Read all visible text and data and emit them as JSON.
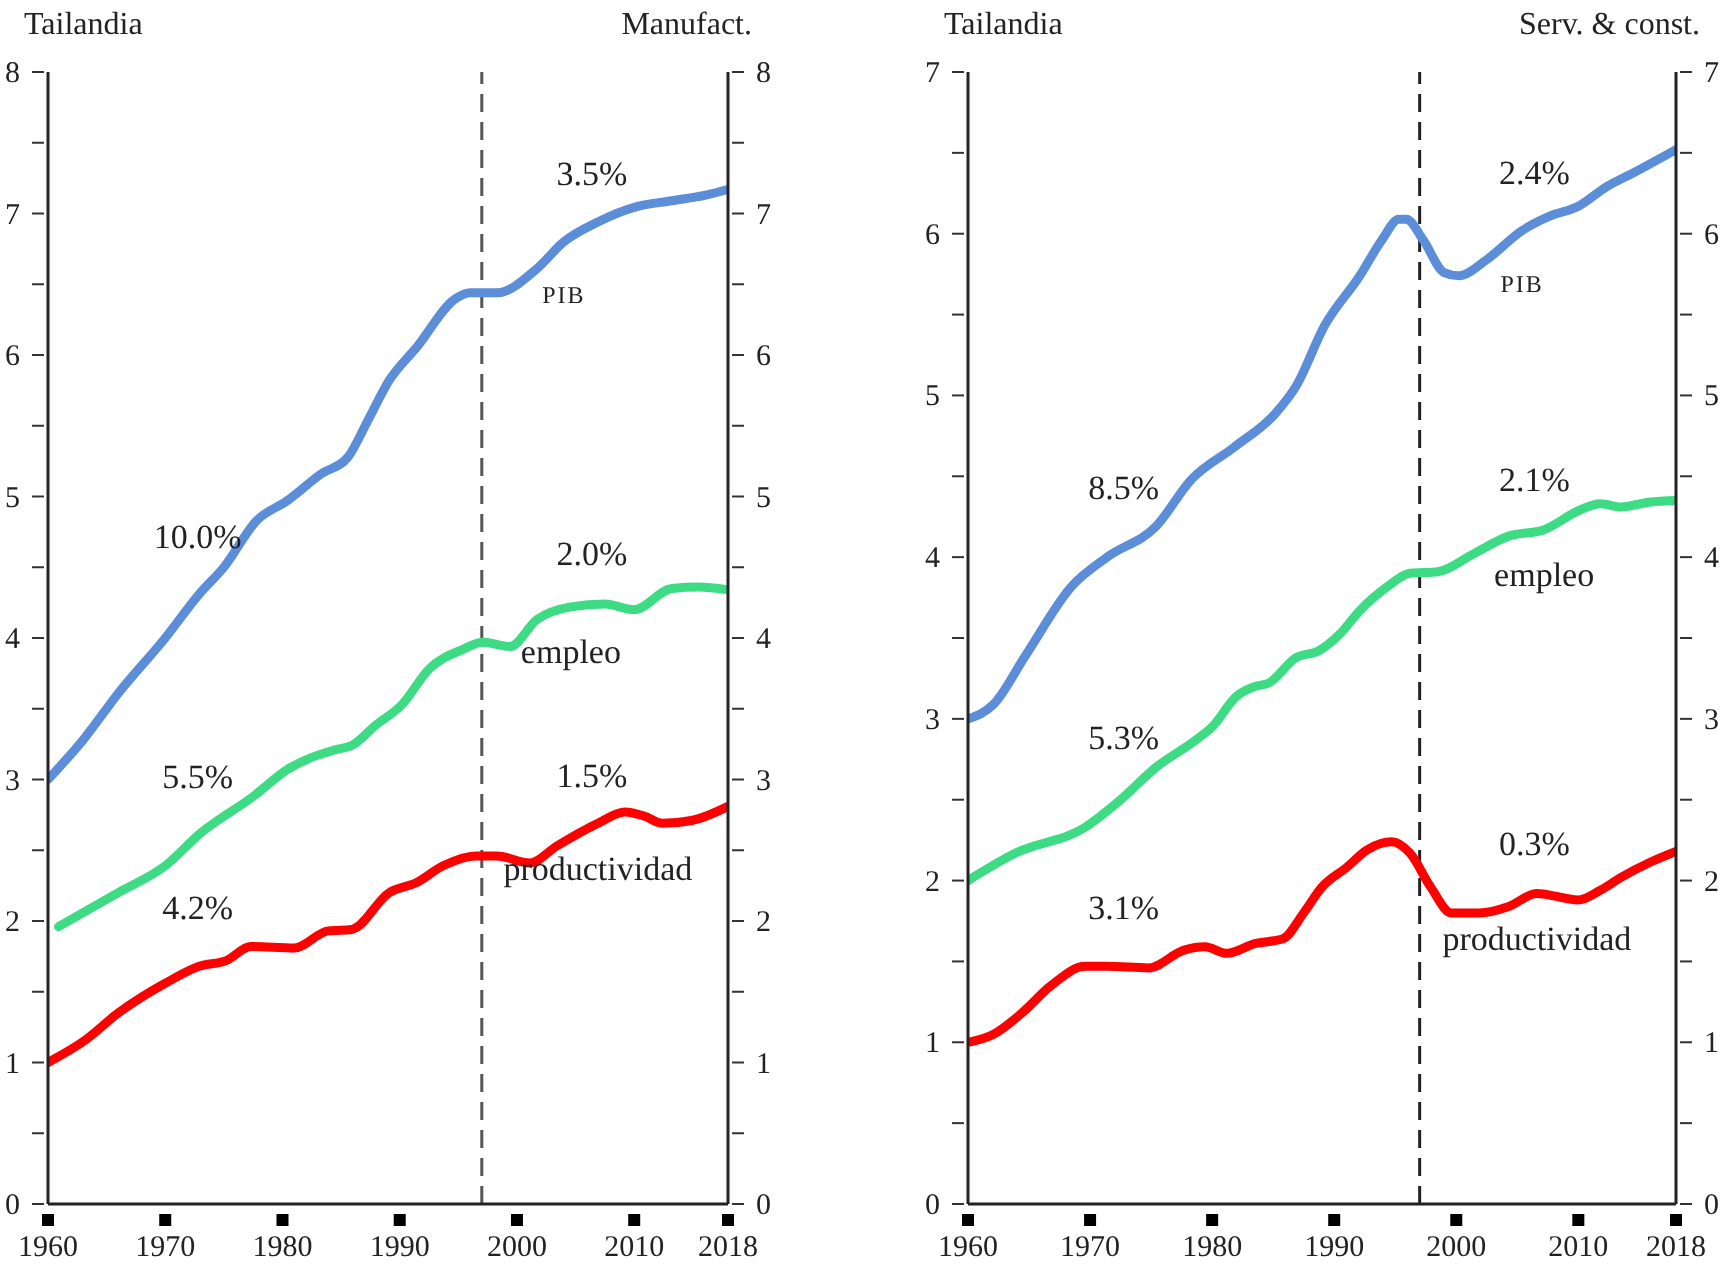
{
  "chart_data": [
    {
      "type": "line",
      "title": "Tailandia",
      "subtitle": "Manufact.",
      "marker": "none",
      "line_style": "solid",
      "xlim": [
        1960,
        2018
      ],
      "xticks": [
        1960,
        1970,
        1980,
        1990,
        2000,
        2010,
        2018
      ],
      "ylim": [
        0,
        8
      ],
      "yticks": [
        0,
        {
          "value": 0.5,
          "label": null
        },
        1,
        {
          "value": 1.5,
          "label": null
        },
        2,
        {
          "value": 2.5,
          "label": null
        },
        3,
        {
          "value": 3.5,
          "label": null
        },
        4,
        {
          "value": 4.5,
          "label": null
        },
        5,
        {
          "value": 5.5,
          "label": null
        },
        6,
        {
          "value": 6.5,
          "label": null
        },
        7,
        {
          "value": 7.5,
          "label": null
        },
        8
      ],
      "y2lim": [
        0,
        8
      ],
      "y2ticks": [
        0,
        {
          "value": 0.5,
          "label": null
        },
        1,
        {
          "value": 1.5,
          "label": null
        },
        2,
        {
          "value": 2.5,
          "label": null
        },
        3,
        {
          "value": 3.5,
          "label": null
        },
        4,
        {
          "value": 4.5,
          "label": null
        },
        5,
        {
          "value": 5.5,
          "label": null
        },
        6,
        {
          "value": 6.5,
          "label": null
        },
        7,
        {
          "value": 7.5,
          "label": null
        },
        8
      ],
      "ref_lines": [
        {
          "axis": "x",
          "value": 1997,
          "color": "#555555",
          "line_style": "dashed"
        }
      ],
      "series": [
        {
          "name": "PIB",
          "color": "#5b8dd9",
          "x": [
            1960,
            1963,
            1966,
            1970,
            1972.9,
            1975,
            1977.8,
            1980.4,
            1983.3,
            1985.6,
            1987.3,
            1989.1,
            1991.4,
            1994.8,
            1996,
            1998.3,
            2001.7,
            2004,
            2006.9,
            2010.3,
            2013.2,
            2016.1,
            2018
          ],
          "values": [
            3.0,
            3.28,
            3.61,
            4.0,
            4.31,
            4.5,
            4.83,
            4.97,
            5.16,
            5.28,
            5.54,
            5.82,
            6.05,
            6.4,
            6.44,
            6.44,
            6.61,
            6.8,
            6.94,
            7.05,
            7.09,
            7.13,
            7.17
          ]
        },
        {
          "name": "empleo",
          "color": "#3ddc84",
          "x": [
            1960.9,
            1966,
            1970,
            1973,
            1977.5,
            1980.4,
            1984.5,
            1985.9,
            1987.9,
            1990.2,
            1992.5,
            1995.4,
            1997.1,
            1999.4,
            2001.7,
            2004.6,
            2007.5,
            2010,
            2013.2,
            2015.5,
            2018
          ],
          "values": [
            1.96,
            2.2,
            2.39,
            2.62,
            2.88,
            3.07,
            3.21,
            3.24,
            3.38,
            3.53,
            3.78,
            3.92,
            3.97,
            3.94,
            4.13,
            4.22,
            4.24,
            4.2,
            4.35,
            4.36,
            4.34
          ]
        },
        {
          "name": "productividad",
          "color": "#ff0000",
          "x": [
            1960,
            1963.2,
            1966,
            1970,
            1972.9,
            1975.2,
            1977.3,
            1981,
            1983.9,
            1985.9,
            1989.1,
            1991.4,
            1993.7,
            1996.5,
            1998.3,
            2001.1,
            2003.4,
            2006.9,
            2009.2,
            2010.9,
            2012.4,
            2014.9,
            2018
          ],
          "values": [
            1.0,
            1.16,
            1.35,
            1.56,
            1.68,
            1.72,
            1.82,
            1.81,
            1.93,
            1.94,
            2.2,
            2.27,
            2.39,
            2.46,
            2.46,
            2.41,
            2.53,
            2.69,
            2.77,
            2.74,
            2.69,
            2.71,
            2.81
          ]
        }
      ],
      "annotations": [
        "10.0%",
        "3.5%",
        "5.5%",
        "2.0%",
        "4.2%",
        "1.5%"
      ]
    },
    {
      "type": "line",
      "title": "Tailandia",
      "subtitle": "Serv. & const.",
      "marker": "none",
      "line_style": "solid",
      "xlim": [
        1960,
        2018
      ],
      "xticks": [
        1960,
        1970,
        1980,
        1990,
        2000,
        2010,
        2018
      ],
      "ylim": [
        0,
        7
      ],
      "yticks": [
        0,
        {
          "value": 0.5,
          "label": null
        },
        1,
        {
          "value": 1.5,
          "label": null
        },
        2,
        {
          "value": 2.5,
          "label": null
        },
        3,
        {
          "value": 3.5,
          "label": null
        },
        4,
        {
          "value": 4.5,
          "label": null
        },
        5,
        {
          "value": 5.5,
          "label": null
        },
        6,
        {
          "value": 6.5,
          "label": null
        },
        7
      ],
      "y2lim": [
        0,
        7
      ],
      "y2ticks": [
        0,
        {
          "value": 0.5,
          "label": null
        },
        1,
        {
          "value": 1.5,
          "label": null
        },
        2,
        {
          "value": 2.5,
          "label": null
        },
        3,
        {
          "value": 3.5,
          "label": null
        },
        4,
        {
          "value": 4.5,
          "label": null
        },
        5,
        {
          "value": 5.5,
          "label": null
        },
        6,
        {
          "value": 6.5,
          "label": null
        },
        7
      ],
      "ref_lines": [
        {
          "axis": "x",
          "value": 1997,
          "color": "#222222",
          "line_style": "dashed"
        }
      ],
      "series": [
        {
          "name": "PIB",
          "color": "#5b8dd9",
          "x": [
            1960,
            1962.1,
            1964.7,
            1968.5,
            1971.4,
            1975.4,
            1978.3,
            1981.8,
            1985.2,
            1986.9,
            1989.2,
            1992.1,
            1993.9,
            1995.3,
            1995.9,
            1997.3,
            1999,
            2000.2,
            2002.5,
            2005.4,
            2007.7,
            2010,
            2012.3,
            2014.6,
            2018
          ],
          "values": [
            3.0,
            3.09,
            3.39,
            3.82,
            4.0,
            4.19,
            4.48,
            4.68,
            4.89,
            5.06,
            5.43,
            5.74,
            5.96,
            6.09,
            6.09,
            5.96,
            5.76,
            5.74,
            5.84,
            6.02,
            6.11,
            6.17,
            6.29,
            6.38,
            6.52
          ]
        },
        {
          "name": "empleo",
          "color": "#3ddc84",
          "x": [
            1960,
            1963.9,
            1969.6,
            1972.5,
            1975.4,
            1978.3,
            1980,
            1982,
            1983.5,
            1984.6,
            1986.9,
            1988.7,
            1990.4,
            1992.1,
            1994.4,
            1996.2,
            1998.5,
            2001.4,
            2004.3,
            2007.2,
            2010.1,
            2011.8,
            2013.5,
            2015.8,
            2018
          ],
          "values": [
            2.0,
            2.17,
            2.33,
            2.5,
            2.7,
            2.85,
            2.95,
            3.14,
            3.2,
            3.22,
            3.38,
            3.42,
            3.52,
            3.67,
            3.82,
            3.9,
            3.91,
            4.02,
            4.13,
            4.17,
            4.29,
            4.33,
            4.31,
            4.34,
            4.35
          ]
        },
        {
          "name": "productividad",
          "color": "#ff0000",
          "x": [
            1960,
            1962.1,
            1964.4,
            1966.8,
            1969.6,
            1971.4,
            1974.8,
            1977.7,
            1979.4,
            1981.2,
            1983.5,
            1985.8,
            1987.5,
            1989,
            1991,
            1992.7,
            1994.7,
            1996.2,
            1997.9,
            1999.6,
            2001.9,
            2004.3,
            2006.6,
            2010,
            2011.8,
            2013.5,
            2015.8,
            2018
          ],
          "values": [
            1.0,
            1.05,
            1.18,
            1.35,
            1.47,
            1.47,
            1.46,
            1.57,
            1.59,
            1.55,
            1.61,
            1.64,
            1.8,
            1.96,
            2.08,
            2.19,
            2.24,
            2.17,
            1.96,
            1.8,
            1.8,
            1.84,
            1.92,
            1.88,
            1.94,
            2.02,
            2.11,
            2.18
          ]
        }
      ],
      "annotations": [
        "8.5%",
        "2.4%",
        "5.3%",
        "2.1%",
        "3.1%",
        "0.3%"
      ]
    }
  ]
}
